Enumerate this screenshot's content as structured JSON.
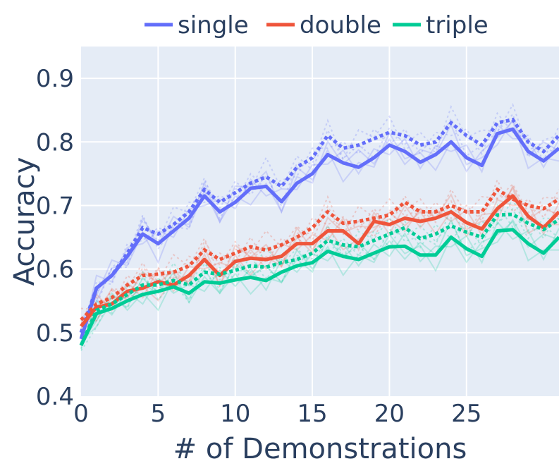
{
  "chart_data": {
    "type": "line",
    "title": "",
    "xlabel": "# of Demonstrations",
    "ylabel": "Accuracy",
    "xlim": [
      0,
      31
    ],
    "ylim": [
      0.4,
      0.95
    ],
    "xticks": [
      0,
      5,
      10,
      15,
      20,
      25
    ],
    "yticks": [
      0.4,
      0.5,
      0.6,
      0.7,
      0.8,
      0.9
    ],
    "xtick_labels": [
      "0",
      "5",
      "10",
      "15",
      "20",
      "25"
    ],
    "ytick_labels": [
      "0.4",
      "0.5",
      "0.6",
      "0.7",
      "0.8",
      "0.9"
    ],
    "grid": true,
    "legend_position": "top",
    "x": [
      0,
      1,
      2,
      3,
      4,
      5,
      6,
      7,
      8,
      9,
      10,
      11,
      12,
      13,
      14,
      15,
      16,
      17,
      18,
      19,
      20,
      21,
      22,
      23,
      24,
      25,
      26,
      27,
      28,
      29,
      30,
      31
    ],
    "series": [
      {
        "name": "single",
        "color": "#636efa",
        "values": [
          0.49,
          0.57,
          0.59,
          0.62,
          0.655,
          0.64,
          0.66,
          0.68,
          0.715,
          0.69,
          0.705,
          0.727,
          0.73,
          0.706,
          0.735,
          0.75,
          0.78,
          0.767,
          0.76,
          0.775,
          0.795,
          0.785,
          0.768,
          0.78,
          0.8,
          0.775,
          0.763,
          0.813,
          0.82,
          0.785,
          0.77,
          0.79
        ],
        "dotted": [
          0.5,
          0.57,
          0.59,
          0.625,
          0.665,
          0.655,
          0.67,
          0.69,
          0.725,
          0.705,
          0.72,
          0.735,
          0.745,
          0.73,
          0.76,
          0.775,
          0.81,
          0.79,
          0.795,
          0.805,
          0.815,
          0.81,
          0.795,
          0.8,
          0.83,
          0.81,
          0.795,
          0.83,
          0.835,
          0.8,
          0.785,
          0.81
        ]
      },
      {
        "name": "double",
        "color": "#ef553b",
        "values": [
          0.51,
          0.54,
          0.545,
          0.565,
          0.57,
          0.58,
          0.575,
          0.59,
          0.615,
          0.59,
          0.612,
          0.617,
          0.615,
          0.62,
          0.64,
          0.64,
          0.66,
          0.66,
          0.64,
          0.675,
          0.67,
          0.68,
          0.675,
          0.68,
          0.69,
          0.673,
          0.663,
          0.695,
          0.715,
          0.683,
          0.665,
          0.69
        ],
        "dotted": [
          0.52,
          0.545,
          0.555,
          0.575,
          0.59,
          0.592,
          0.595,
          0.605,
          0.63,
          0.615,
          0.625,
          0.635,
          0.63,
          0.638,
          0.65,
          0.665,
          0.69,
          0.672,
          0.675,
          0.68,
          0.685,
          0.705,
          0.69,
          0.69,
          0.7,
          0.69,
          0.69,
          0.725,
          0.71,
          0.7,
          0.695,
          0.71
        ]
      },
      {
        "name": "triple",
        "color": "#00cc96",
        "values": [
          0.48,
          0.53,
          0.538,
          0.55,
          0.56,
          0.565,
          0.572,
          0.562,
          0.58,
          0.578,
          0.583,
          0.587,
          0.582,
          0.595,
          0.605,
          0.61,
          0.628,
          0.62,
          0.615,
          0.625,
          0.635,
          0.636,
          0.622,
          0.622,
          0.65,
          0.632,
          0.62,
          0.66,
          0.662,
          0.64,
          0.625,
          0.65
        ],
        "dotted": [
          0.48,
          0.535,
          0.545,
          0.56,
          0.575,
          0.575,
          0.582,
          0.575,
          0.595,
          0.592,
          0.598,
          0.605,
          0.603,
          0.61,
          0.615,
          0.625,
          0.645,
          0.638,
          0.635,
          0.645,
          0.655,
          0.665,
          0.648,
          0.655,
          0.668,
          0.658,
          0.65,
          0.685,
          0.686,
          0.672,
          0.662,
          0.678
        ]
      }
    ]
  }
}
